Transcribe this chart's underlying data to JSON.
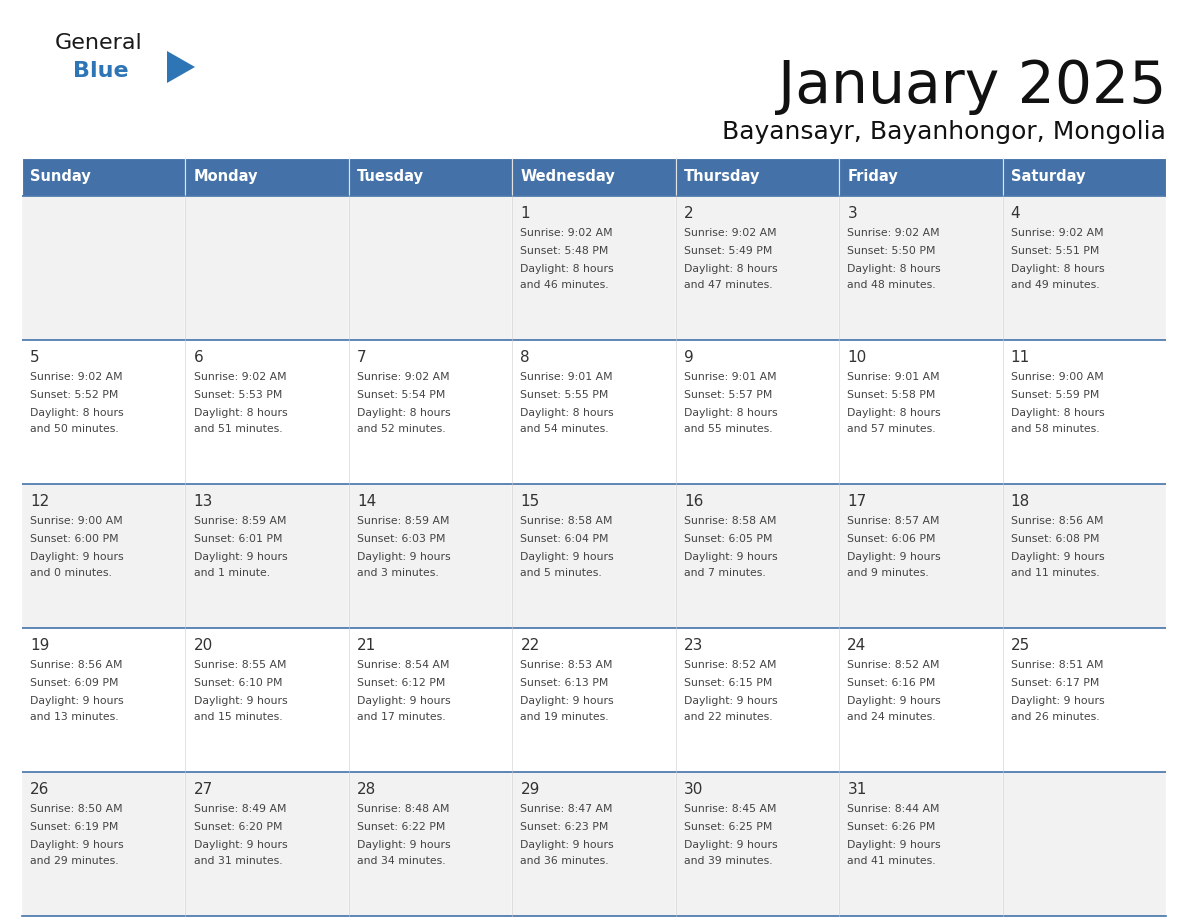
{
  "title": "January 2025",
  "subtitle": "Bayansayr, Bayanhongor, Mongolia",
  "days_of_week": [
    "Sunday",
    "Monday",
    "Tuesday",
    "Wednesday",
    "Thursday",
    "Friday",
    "Saturday"
  ],
  "header_bg": "#4472A8",
  "header_text": "#FFFFFF",
  "row_bg_odd": "#F2F2F2",
  "row_bg_even": "#FFFFFF",
  "cell_border_color": "#4472A8",
  "day_number_color": "#333333",
  "text_color": "#444444",
  "logo_general_color": "#1a1a1a",
  "logo_blue_color": "#2E75B6",
  "calendar_data": [
    [
      null,
      null,
      null,
      {
        "day": 1,
        "sunrise": "9:02 AM",
        "sunset": "5:48 PM",
        "daylight": "8 hours and 46 minutes."
      },
      {
        "day": 2,
        "sunrise": "9:02 AM",
        "sunset": "5:49 PM",
        "daylight": "8 hours and 47 minutes."
      },
      {
        "day": 3,
        "sunrise": "9:02 AM",
        "sunset": "5:50 PM",
        "daylight": "8 hours and 48 minutes."
      },
      {
        "day": 4,
        "sunrise": "9:02 AM",
        "sunset": "5:51 PM",
        "daylight": "8 hours and 49 minutes."
      }
    ],
    [
      {
        "day": 5,
        "sunrise": "9:02 AM",
        "sunset": "5:52 PM",
        "daylight": "8 hours and 50 minutes."
      },
      {
        "day": 6,
        "sunrise": "9:02 AM",
        "sunset": "5:53 PM",
        "daylight": "8 hours and 51 minutes."
      },
      {
        "day": 7,
        "sunrise": "9:02 AM",
        "sunset": "5:54 PM",
        "daylight": "8 hours and 52 minutes."
      },
      {
        "day": 8,
        "sunrise": "9:01 AM",
        "sunset": "5:55 PM",
        "daylight": "8 hours and 54 minutes."
      },
      {
        "day": 9,
        "sunrise": "9:01 AM",
        "sunset": "5:57 PM",
        "daylight": "8 hours and 55 minutes."
      },
      {
        "day": 10,
        "sunrise": "9:01 AM",
        "sunset": "5:58 PM",
        "daylight": "8 hours and 57 minutes."
      },
      {
        "day": 11,
        "sunrise": "9:00 AM",
        "sunset": "5:59 PM",
        "daylight": "8 hours and 58 minutes."
      }
    ],
    [
      {
        "day": 12,
        "sunrise": "9:00 AM",
        "sunset": "6:00 PM",
        "daylight": "9 hours and 0 minutes."
      },
      {
        "day": 13,
        "sunrise": "8:59 AM",
        "sunset": "6:01 PM",
        "daylight": "9 hours and 1 minute."
      },
      {
        "day": 14,
        "sunrise": "8:59 AM",
        "sunset": "6:03 PM",
        "daylight": "9 hours and 3 minutes."
      },
      {
        "day": 15,
        "sunrise": "8:58 AM",
        "sunset": "6:04 PM",
        "daylight": "9 hours and 5 minutes."
      },
      {
        "day": 16,
        "sunrise": "8:58 AM",
        "sunset": "6:05 PM",
        "daylight": "9 hours and 7 minutes."
      },
      {
        "day": 17,
        "sunrise": "8:57 AM",
        "sunset": "6:06 PM",
        "daylight": "9 hours and 9 minutes."
      },
      {
        "day": 18,
        "sunrise": "8:56 AM",
        "sunset": "6:08 PM",
        "daylight": "9 hours and 11 minutes."
      }
    ],
    [
      {
        "day": 19,
        "sunrise": "8:56 AM",
        "sunset": "6:09 PM",
        "daylight": "9 hours and 13 minutes."
      },
      {
        "day": 20,
        "sunrise": "8:55 AM",
        "sunset": "6:10 PM",
        "daylight": "9 hours and 15 minutes."
      },
      {
        "day": 21,
        "sunrise": "8:54 AM",
        "sunset": "6:12 PM",
        "daylight": "9 hours and 17 minutes."
      },
      {
        "day": 22,
        "sunrise": "8:53 AM",
        "sunset": "6:13 PM",
        "daylight": "9 hours and 19 minutes."
      },
      {
        "day": 23,
        "sunrise": "8:52 AM",
        "sunset": "6:15 PM",
        "daylight": "9 hours and 22 minutes."
      },
      {
        "day": 24,
        "sunrise": "8:52 AM",
        "sunset": "6:16 PM",
        "daylight": "9 hours and 24 minutes."
      },
      {
        "day": 25,
        "sunrise": "8:51 AM",
        "sunset": "6:17 PM",
        "daylight": "9 hours and 26 minutes."
      }
    ],
    [
      {
        "day": 26,
        "sunrise": "8:50 AM",
        "sunset": "6:19 PM",
        "daylight": "9 hours and 29 minutes."
      },
      {
        "day": 27,
        "sunrise": "8:49 AM",
        "sunset": "6:20 PM",
        "daylight": "9 hours and 31 minutes."
      },
      {
        "day": 28,
        "sunrise": "8:48 AM",
        "sunset": "6:22 PM",
        "daylight": "9 hours and 34 minutes."
      },
      {
        "day": 29,
        "sunrise": "8:47 AM",
        "sunset": "6:23 PM",
        "daylight": "9 hours and 36 minutes."
      },
      {
        "day": 30,
        "sunrise": "8:45 AM",
        "sunset": "6:25 PM",
        "daylight": "9 hours and 39 minutes."
      },
      {
        "day": 31,
        "sunrise": "8:44 AM",
        "sunset": "6:26 PM",
        "daylight": "9 hours and 41 minutes."
      },
      null
    ]
  ],
  "num_rows": 5,
  "num_cols": 7
}
